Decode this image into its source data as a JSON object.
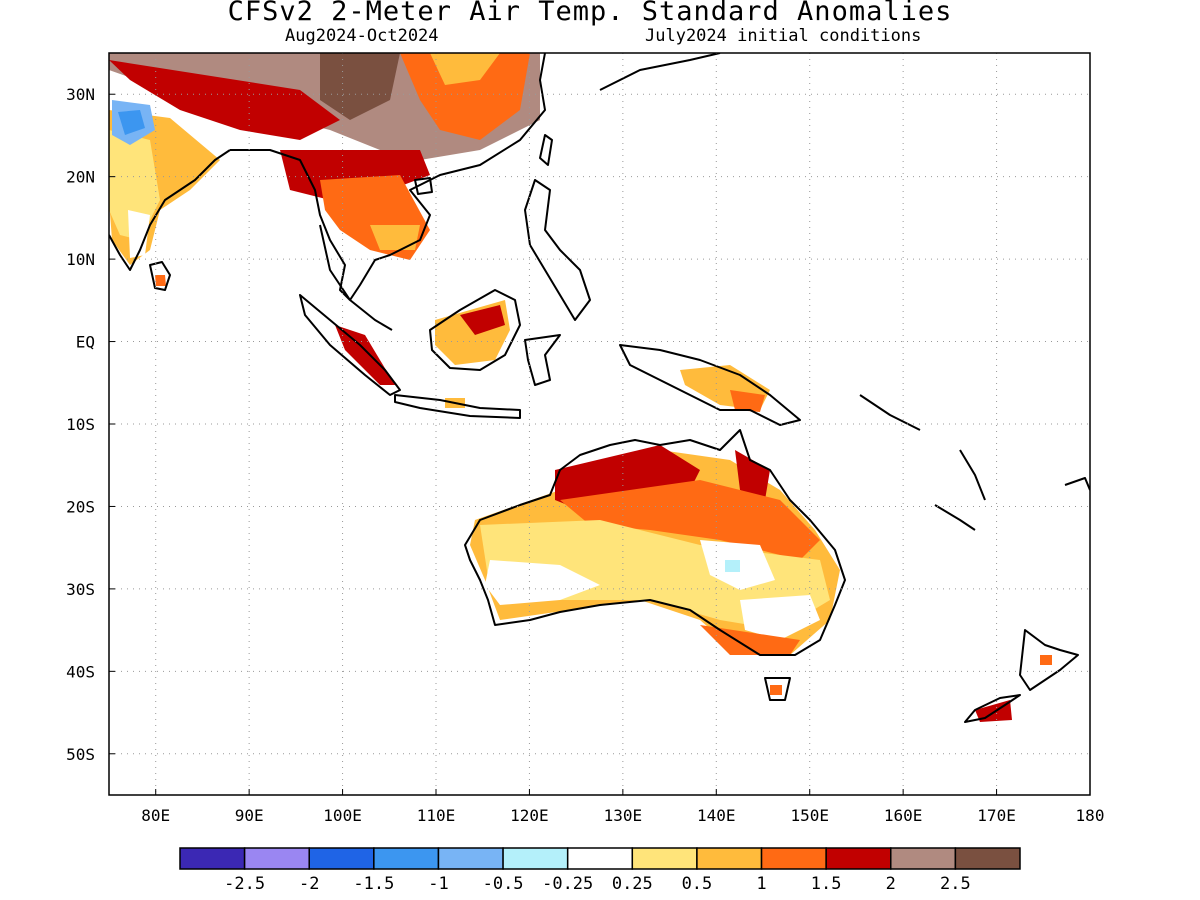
{
  "header": {
    "title": "CFSv2 2-Meter Air Temp. Standard Anomalies",
    "period": "Aug2024-Oct2024",
    "init": "July2024 initial conditions"
  },
  "map": {
    "lon_range": [
      75,
      180
    ],
    "lat_range": [
      -55,
      35
    ],
    "lon_ticks": [
      {
        "v": 80,
        "label": "80E"
      },
      {
        "v": 90,
        "label": "90E"
      },
      {
        "v": 100,
        "label": "100E"
      },
      {
        "v": 110,
        "label": "110E"
      },
      {
        "v": 120,
        "label": "120E"
      },
      {
        "v": 130,
        "label": "130E"
      },
      {
        "v": 140,
        "label": "140E"
      },
      {
        "v": 150,
        "label": "150E"
      },
      {
        "v": 160,
        "label": "160E"
      },
      {
        "v": 170,
        "label": "170E"
      },
      {
        "v": 180,
        "label": "180"
      }
    ],
    "lat_ticks": [
      {
        "v": 30,
        "label": "30N"
      },
      {
        "v": 20,
        "label": "20N"
      },
      {
        "v": 10,
        "label": "10N"
      },
      {
        "v": 0,
        "label": "EQ"
      },
      {
        "v": -10,
        "label": "10S"
      },
      {
        "v": -20,
        "label": "20S"
      },
      {
        "v": -30,
        "label": "30S"
      },
      {
        "v": -40,
        "label": "40S"
      },
      {
        "v": -50,
        "label": "50S"
      }
    ],
    "gridlines": true
  },
  "colorbar": {
    "colors": [
      "#3b28b4",
      "#9a86f2",
      "#1f64e6",
      "#3c96f0",
      "#78b4f5",
      "#b4f0fa",
      "#ffffff",
      "#ffe47a",
      "#ffbb3c",
      "#ff6a14",
      "#c10000",
      "#b08a80",
      "#7a5040"
    ],
    "labels": [
      "-2.5",
      "-2",
      "-1.5",
      "-1",
      "-0.5",
      "-0.25",
      "0.25",
      "0.5",
      "1",
      "1.5",
      "2",
      "2.5"
    ]
  }
}
